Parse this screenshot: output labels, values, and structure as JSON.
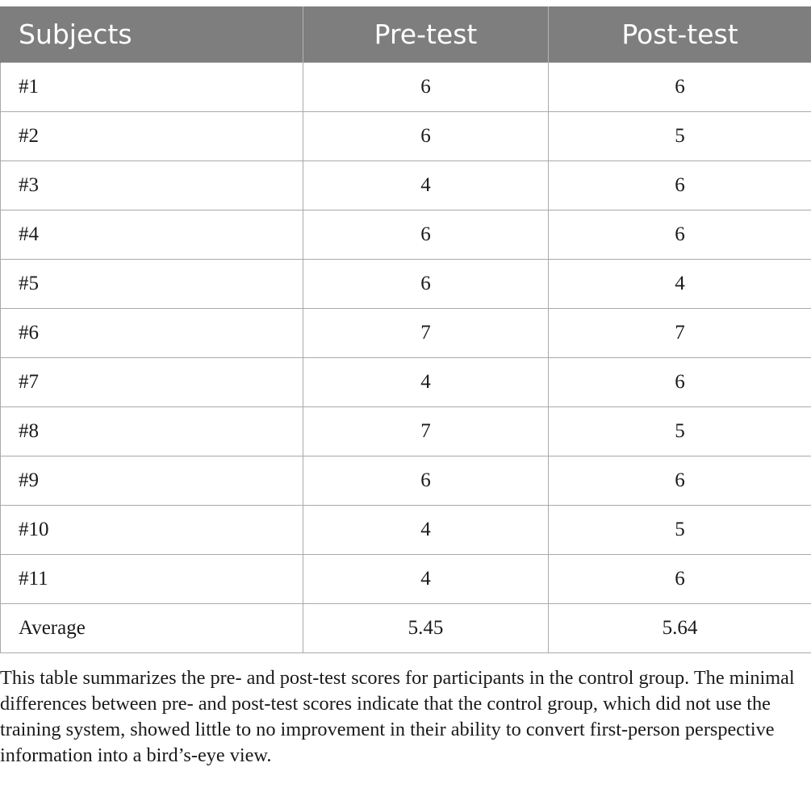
{
  "table": {
    "headers": [
      "Subjects",
      "Pre-test",
      "Post-test"
    ],
    "rows": [
      [
        "#1",
        "6",
        "6"
      ],
      [
        "#2",
        "6",
        "5"
      ],
      [
        "#3",
        "4",
        "6"
      ],
      [
        "#4",
        "6",
        "6"
      ],
      [
        "#5",
        "6",
        "4"
      ],
      [
        "#6",
        "7",
        "7"
      ],
      [
        "#7",
        "4",
        "6"
      ],
      [
        "#8",
        "7",
        "5"
      ],
      [
        "#9",
        "6",
        "6"
      ],
      [
        "#10",
        "4",
        "5"
      ],
      [
        "#11",
        "4",
        "6"
      ],
      [
        "Average",
        "5.45",
        "5.64"
      ]
    ]
  },
  "caption": "This table summarizes the pre- and post-test scores for participants in the control group. The minimal differences between pre- and post-test scores indicate that the control group, which did not use the training system, showed little to no improvement in their ability to convert first-person perspective information into a bird’s-eye view.",
  "colors": {
    "header_bg": "#7d7e7d",
    "header_text": "#ffffff",
    "border": "#a9a9a9",
    "body_text": "#1a1a1a"
  }
}
